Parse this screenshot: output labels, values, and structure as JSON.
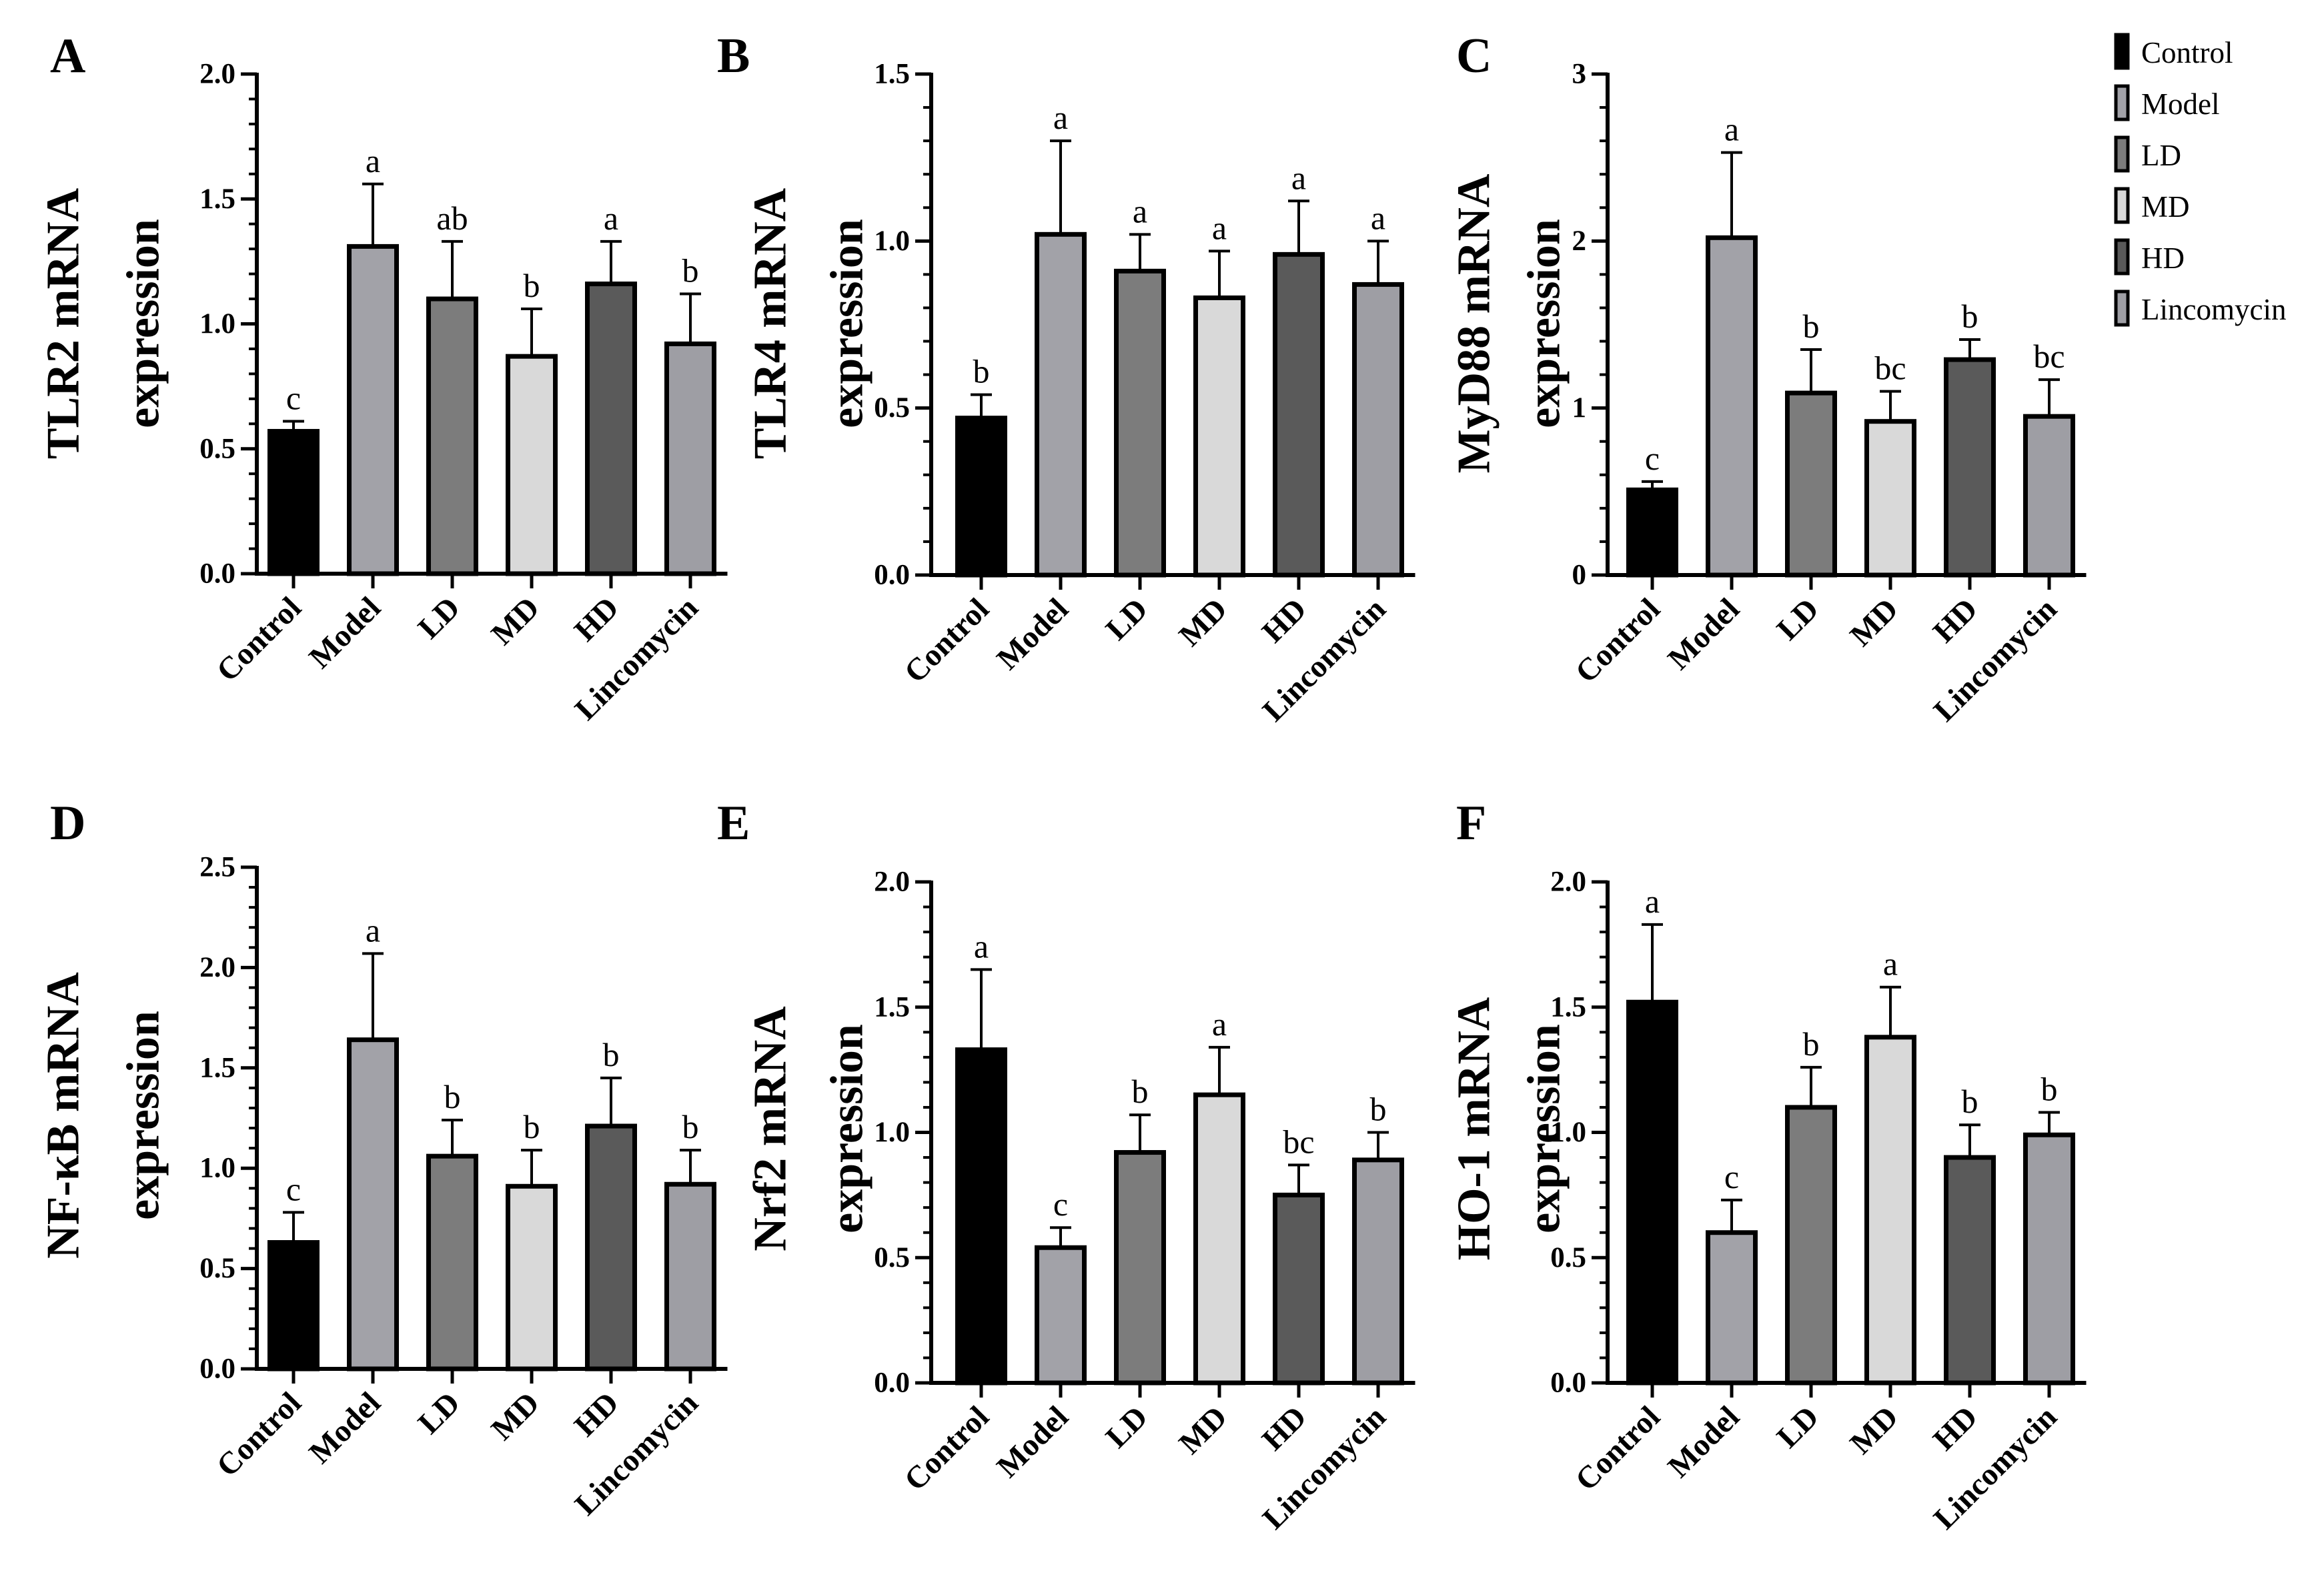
{
  "legend": [
    {
      "label": "Control",
      "color": "#000000"
    },
    {
      "label": "Model",
      "color": "#a2a2a8"
    },
    {
      "label": "LD",
      "color": "#7c7c7c"
    },
    {
      "label": "MD",
      "color": "#d9d9d9"
    },
    {
      "label": "HD",
      "color": "#5a5a5a"
    },
    {
      "label": "Lincomycin",
      "color": "#9e9ea4"
    }
  ],
  "chart_data": [
    {
      "panel": "A",
      "type": "bar",
      "ylabel_lines": [
        "TLR2 mRNA",
        "expression"
      ],
      "categories": [
        "Control",
        "Model",
        "LD",
        "MD",
        "HD",
        "Lincomycin"
      ],
      "values": [
        0.57,
        1.31,
        1.1,
        0.87,
        1.16,
        0.92
      ],
      "errors": [
        0.04,
        0.25,
        0.23,
        0.19,
        0.17,
        0.2
      ],
      "significance": [
        "c",
        "a",
        "ab",
        "b",
        "a",
        "b"
      ],
      "ylim": [
        0,
        2.0
      ],
      "yticks": [
        "0.0",
        "0.5",
        "1.0",
        "1.5",
        "2.0"
      ],
      "ytick_values": [
        0,
        0.5,
        1.0,
        1.5,
        2.0
      ],
      "minor_step": 0.1
    },
    {
      "panel": "B",
      "type": "bar",
      "ylabel_lines": [
        "TLR4 mRNA",
        "expression"
      ],
      "categories": [
        "Control",
        "Model",
        "LD",
        "MD",
        "HD",
        "Lincomycin"
      ],
      "values": [
        0.47,
        1.02,
        0.91,
        0.83,
        0.96,
        0.87
      ],
      "errors": [
        0.07,
        0.28,
        0.11,
        0.14,
        0.16,
        0.13
      ],
      "significance": [
        "b",
        "a",
        "a",
        "a",
        "a",
        "a"
      ],
      "ylim": [
        0,
        1.5
      ],
      "yticks": [
        "0.0",
        "0.5",
        "1.0",
        "1.5"
      ],
      "ytick_values": [
        0,
        0.5,
        1.0,
        1.5
      ],
      "minor_step": 0.1
    },
    {
      "panel": "C",
      "type": "bar",
      "ylabel_lines": [
        "MyD88 mRNA",
        "expression"
      ],
      "categories": [
        "Control",
        "Model",
        "LD",
        "MD",
        "HD",
        "Lincomycin"
      ],
      "values": [
        0.51,
        2.02,
        1.09,
        0.92,
        1.29,
        0.95
      ],
      "errors": [
        0.05,
        0.51,
        0.26,
        0.18,
        0.12,
        0.22
      ],
      "significance": [
        "c",
        "a",
        "b",
        "bc",
        "b",
        "bc"
      ],
      "ylim": [
        0,
        3
      ],
      "yticks": [
        "0",
        "1",
        "2",
        "3"
      ],
      "ytick_values": [
        0,
        1,
        2,
        3
      ],
      "minor_step": 0.2
    },
    {
      "panel": "D",
      "type": "bar",
      "ylabel_lines": [
        "NF-κB mRNA",
        "expression"
      ],
      "categories": [
        "Control",
        "Model",
        "LD",
        "MD",
        "HD",
        "Lincomycin"
      ],
      "values": [
        0.63,
        1.64,
        1.06,
        0.91,
        1.21,
        0.92
      ],
      "errors": [
        0.15,
        0.43,
        0.18,
        0.18,
        0.24,
        0.17
      ],
      "significance": [
        "c",
        "a",
        "b",
        "b",
        "b",
        "b"
      ],
      "ylim": [
        0,
        2.5
      ],
      "yticks": [
        "0.0",
        "0.5",
        "1.0",
        "1.5",
        "2.0",
        "2.5"
      ],
      "ytick_values": [
        0,
        0.5,
        1.0,
        1.5,
        2.0,
        2.5
      ],
      "minor_step": 0.1
    },
    {
      "panel": "E",
      "type": "bar",
      "ylabel_lines": [
        "Nrf2  mRNA",
        "expression"
      ],
      "categories": [
        "Control",
        "Model",
        "LD",
        "MD",
        "HD",
        "Lincomycin"
      ],
      "values": [
        1.33,
        0.54,
        0.92,
        1.15,
        0.75,
        0.89
      ],
      "errors": [
        0.32,
        0.08,
        0.15,
        0.19,
        0.12,
        0.11
      ],
      "significance": [
        "a",
        "c",
        "b",
        "a",
        "bc",
        "b"
      ],
      "ylim": [
        0,
        2.0
      ],
      "yticks": [
        "0.0",
        "0.5",
        "1.0",
        "1.5",
        "2.0"
      ],
      "ytick_values": [
        0,
        0.5,
        1.0,
        1.5,
        2.0
      ],
      "minor_step": 0.1
    },
    {
      "panel": "F",
      "type": "bar",
      "ylabel_lines": [
        "HO-1 mRNA",
        "expression"
      ],
      "categories": [
        "Control",
        "Model",
        "LD",
        "MD",
        "HD",
        "Lincomycin"
      ],
      "values": [
        1.52,
        0.6,
        1.1,
        1.38,
        0.9,
        0.99
      ],
      "errors": [
        0.31,
        0.13,
        0.16,
        0.2,
        0.13,
        0.09
      ],
      "significance": [
        "a",
        "c",
        "b",
        "a",
        "b",
        "b"
      ],
      "ylim": [
        0,
        2.0
      ],
      "yticks": [
        "0.0",
        "0.5",
        "1.0",
        "1.5",
        "2.0"
      ],
      "ytick_values": [
        0,
        0.5,
        1.0,
        1.5,
        2.0
      ],
      "minor_step": 0.1
    }
  ]
}
